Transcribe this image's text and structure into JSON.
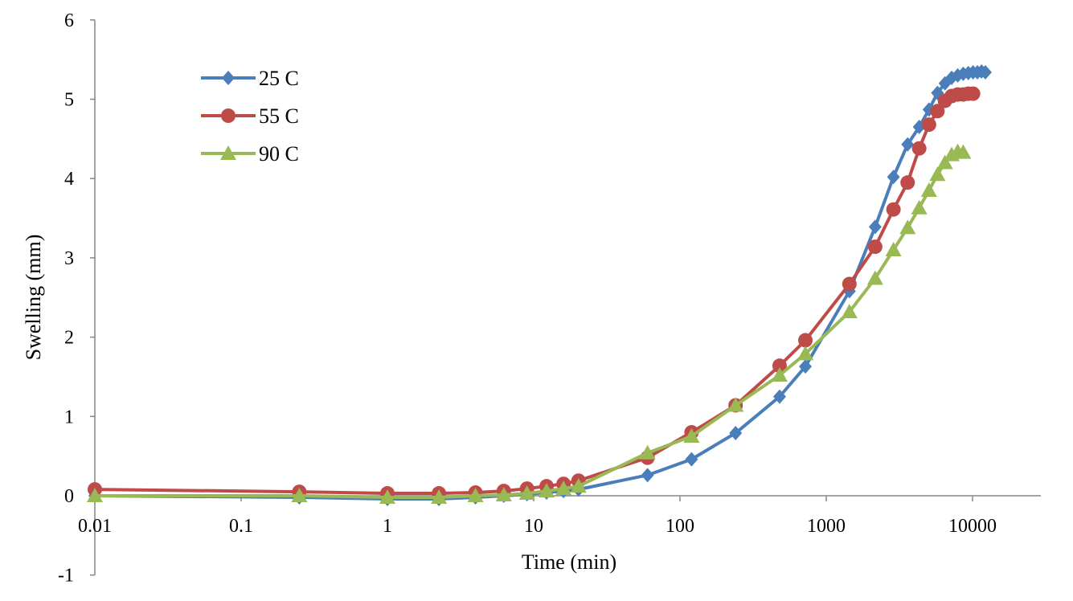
{
  "chart_data": {
    "type": "line",
    "x_scale": "log",
    "title": "",
    "xlabel": "Time (min)",
    "ylabel": "Swelling (mm)",
    "xlim": [
      0.01,
      30000
    ],
    "ylim": [
      -1,
      6
    ],
    "x_ticks": [
      0.01,
      0.1,
      1,
      10,
      100,
      1000,
      10000
    ],
    "x_tick_labels": [
      "0.01",
      "0.1",
      "1",
      "10",
      "100",
      "1000",
      "10000"
    ],
    "y_ticks": [
      -1,
      0,
      1,
      2,
      3,
      4,
      5,
      6
    ],
    "y_tick_labels": [
      "-1",
      "0",
      "1",
      "2",
      "3",
      "4",
      "5",
      "6"
    ],
    "grid": false,
    "legend_position": "top-left",
    "series": [
      {
        "name": "25 C",
        "color": "#4a7ebb",
        "marker": "diamond",
        "x": [
          0.01,
          0.25,
          1,
          2.25,
          4,
          6.25,
          9,
          12.25,
          16,
          20.25,
          60,
          120,
          240,
          480,
          720,
          1440,
          2160,
          2880,
          3600,
          4320,
          5040,
          5760,
          6480,
          7200,
          7920,
          8640,
          9360,
          10080,
          10800,
          11520,
          12240
        ],
        "y": [
          0.0,
          -0.02,
          -0.04,
          -0.04,
          -0.02,
          0.0,
          0.02,
          0.04,
          0.06,
          0.08,
          0.26,
          0.46,
          0.79,
          1.25,
          1.63,
          2.58,
          3.39,
          4.02,
          4.43,
          4.65,
          4.87,
          5.08,
          5.2,
          5.27,
          5.3,
          5.32,
          5.33,
          5.34,
          5.34,
          5.35,
          5.34
        ]
      },
      {
        "name": "55 C",
        "color": "#be4b48",
        "marker": "circle",
        "x": [
          0.01,
          0.25,
          1,
          2.25,
          4,
          6.25,
          9,
          12.25,
          16,
          20.25,
          60,
          120,
          240,
          480,
          720,
          1440,
          2160,
          2880,
          3600,
          4320,
          5040,
          5760,
          6480,
          7200,
          7920,
          8640,
          9360,
          10080
        ],
        "y": [
          0.08,
          0.05,
          0.03,
          0.03,
          0.04,
          0.06,
          0.09,
          0.12,
          0.15,
          0.19,
          0.48,
          0.8,
          1.14,
          1.64,
          1.96,
          2.67,
          3.14,
          3.61,
          3.95,
          4.38,
          4.68,
          4.85,
          4.98,
          5.04,
          5.06,
          5.06,
          5.07,
          5.07
        ]
      },
      {
        "name": "90 C",
        "color": "#98b954",
        "marker": "triangle",
        "x": [
          0.01,
          0.25,
          1,
          2.25,
          4,
          6.25,
          9,
          12.25,
          16,
          20.25,
          60,
          120,
          240,
          480,
          720,
          1440,
          2160,
          2880,
          3600,
          4320,
          5040,
          5760,
          6480,
          7200,
          7920,
          8640
        ],
        "y": [
          0.0,
          0.0,
          -0.02,
          -0.02,
          0.0,
          0.01,
          0.03,
          0.06,
          0.09,
          0.12,
          0.54,
          0.75,
          1.14,
          1.52,
          1.79,
          2.32,
          2.74,
          3.1,
          3.38,
          3.63,
          3.85,
          4.05,
          4.2,
          4.3,
          4.34,
          4.33
        ]
      }
    ]
  }
}
